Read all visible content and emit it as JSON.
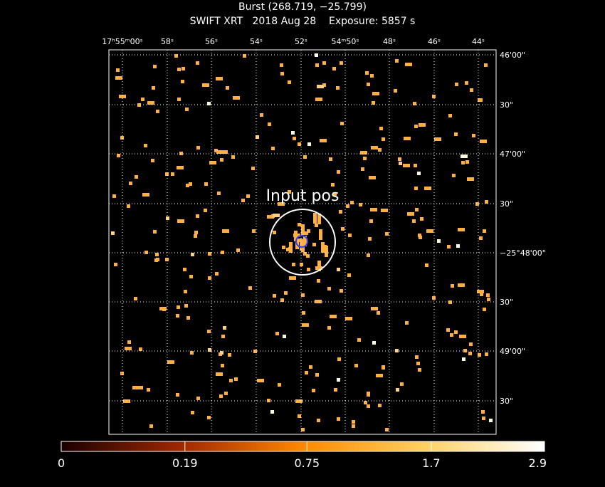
{
  "title": "Burst (268.719, −25.799)",
  "subtitle": "SWIFT XRT   2018 Aug 28    Exposure: 5857 s",
  "annotation": "Input pos",
  "ra_ticks": [
    "17ʰ55ᵐ00ˢ",
    "58ˢ",
    "56ˢ",
    "54ˢ",
    "52ˢ",
    "54ᵐ50ˢ",
    "48ˢ",
    "46ˢ",
    "44ˢ"
  ],
  "dec_ticks": [
    "46'00\"",
    "30\"",
    "47'00\"",
    "30\"",
    "−25°48'00\"",
    "30\"",
    "49'00\"",
    "30\""
  ],
  "colorbar": {
    "scale": "sqrt",
    "clim": [
      0,
      2.9
    ],
    "ticks": [
      0,
      0.19,
      0.75,
      1.7,
      2.9
    ]
  }
}
